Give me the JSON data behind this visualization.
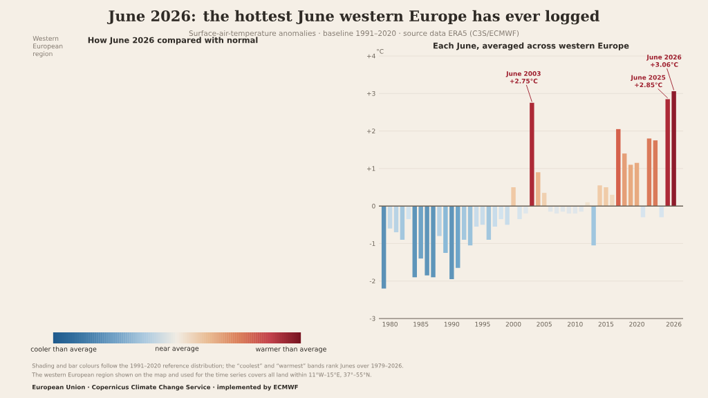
{
  "chart_data": [
    {
      "type": "other",
      "title": "June 2026: the hottest June western Europe has ever logged",
      "subtitle": "Surface-air-temperature anomalies · baseline 1991–2020 · source data ERA5 (C3S/ECMWF)",
      "annotations": [
        "Shading and bar colours follow the 1991–2020 reference distribution; the “coolest” and “warmest” bands rank Junes over 1979–2026.",
        "The western European region shown on the map and used for the time series covers all land within 11°W–15°E, 37°–55°N.",
        "European Union · Copernicus Climate Change Service · implemented by ECMWF"
      ]
    },
    {
      "type": "other",
      "title": "How June 2026 compared with normal",
      "annotations": [
        "Western European region",
        "cooler than average",
        "near average",
        "warmer than average"
      ],
      "colors": [
        "#1f5a8c",
        "#3d78a6",
        "#6e9fc5",
        "#aecbe0",
        "#f1ece3",
        "#e9bc93",
        "#da7d57",
        "#c2404a",
        "#761420"
      ]
    },
    {
      "type": "bar",
      "title": "Each June, averaged across western Europe",
      "ylabel": "°C",
      "x": [
        1979,
        1980,
        1981,
        1982,
        1983,
        1984,
        1985,
        1986,
        1987,
        1988,
        1989,
        1990,
        1991,
        1992,
        1993,
        1994,
        1995,
        1996,
        1997,
        1998,
        1999,
        2000,
        2001,
        2002,
        2003,
        2004,
        2005,
        2006,
        2007,
        2008,
        2009,
        2010,
        2011,
        2012,
        2013,
        2014,
        2015,
        2016,
        2017,
        2018,
        2019,
        2020,
        2021,
        2022,
        2023,
        2024,
        2025,
        2026
      ],
      "values": [
        -2.2,
        -0.6,
        -0.7,
        -0.9,
        -0.35,
        -1.9,
        -1.4,
        -1.85,
        -1.9,
        -0.8,
        -1.25,
        -1.95,
        -1.65,
        -0.9,
        -1.05,
        -0.55,
        -0.5,
        -0.9,
        -0.55,
        -0.35,
        -0.5,
        0.5,
        -0.35,
        -0.2,
        2.75,
        0.9,
        0.35,
        -0.15,
        -0.2,
        -0.15,
        -0.2,
        -0.2,
        -0.15,
        0.1,
        -1.05,
        0.55,
        0.5,
        0.3,
        2.05,
        1.4,
        1.1,
        1.15,
        -0.3,
        1.8,
        1.75,
        -0.3,
        2.85,
        3.06
      ],
      "colors": [
        "#5b91b7",
        "#c3d9e8",
        "#b8d3e5",
        "#a3c7de",
        "#d2e3ee",
        "#5e95ba",
        "#6fa3c6",
        "#5e95ba",
        "#5e95ba",
        "#b5d1e4",
        "#8ab9d7",
        "#5e95ba",
        "#6ea5c9",
        "#a3c7de",
        "#9ac2db",
        "#c8dcea",
        "#c8dcea",
        "#a3c7de",
        "#c8dcea",
        "#d2e3ee",
        "#c8dcea",
        "#f0c9a5",
        "#d7e4ec",
        "#dfe7ec",
        "#ad2a37",
        "#ebb48b",
        "#f0d0b0",
        "#e0e6ea",
        "#e0e6ea",
        "#e0e6ea",
        "#e0e6ea",
        "#e0e6ea",
        "#e0e6ea",
        "#f0e2cf",
        "#9fc6df",
        "#f0cba8",
        "#f0cba8",
        "#f1d9bf",
        "#d5614c",
        "#e59f78",
        "#e8aa80",
        "#e8aa80",
        "#d7e4ee",
        "#da7a5a",
        "#da7a5a",
        "#d7e4ee",
        "#ad2a37",
        "#8e1b2b"
      ],
      "xlim": [
        1978.2,
        2027.5
      ],
      "xticks": [
        1980,
        1985,
        1990,
        1995,
        2000,
        2005,
        2010,
        2015,
        2020,
        2026
      ],
      "ylim": [
        -3,
        4
      ],
      "yticks": [
        {
          "value": 4,
          "label": "+4"
        },
        {
          "value": 3,
          "label": "+3"
        },
        {
          "value": 2,
          "label": "+2"
        },
        {
          "value": 1,
          "label": "+1"
        },
        0,
        -1,
        -2,
        -3
      ],
      "grid": "y",
      "ref_lines": [
        {
          "axis": "y",
          "value": 0,
          "color": "#6b6358"
        }
      ],
      "annotations": [
        {
          "text": "June 2003 +2.75°C",
          "x": 2003,
          "y": 2.75
        },
        {
          "text": "June 2025 +2.85°C",
          "x": 2025,
          "y": 2.85
        },
        {
          "text": "June 2026 +3.06°C",
          "x": 2026,
          "y": 3.06
        }
      ]
    }
  ]
}
